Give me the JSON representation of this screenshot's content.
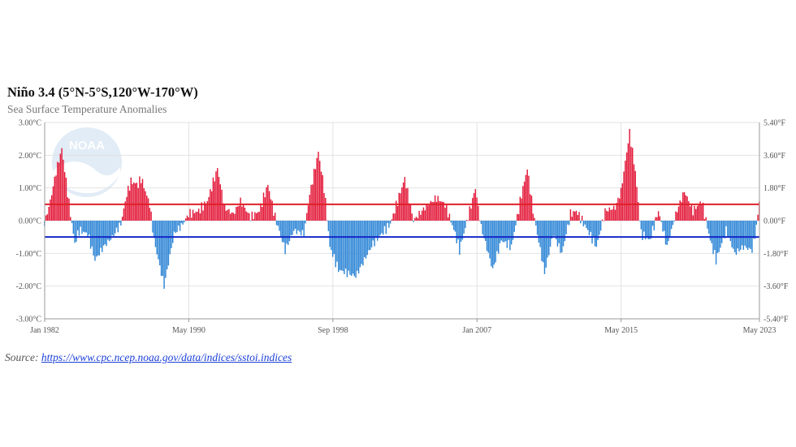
{
  "title": "Niño 3.4 (5°N-5°S,120°W-170°W)",
  "subtitle": "Sea Surface Temperature Anomalies",
  "source": {
    "label": "Source:",
    "link_text": "https://www.cpc.ncep.noaa.gov/data/indices/sstoi.indices"
  },
  "logo_text": "NOAA",
  "colors": {
    "positive": "#e31a3a",
    "negative": "#2f86d6",
    "threshold_upper": "#e0202a",
    "threshold_lower": "#1428c8",
    "grid": "#e2e2e2",
    "axis": "#999999"
  },
  "chart_data": {
    "type": "bar",
    "title": "Niño 3.4 (5°N-5°S,120°W-170°W)",
    "subtitle": "Sea Surface Temperature Anomalies",
    "xlabel": "",
    "ylabel": "",
    "ylim": [
      -3.0,
      3.0
    ],
    "y_ticks": [
      "3.00°C",
      "2.00°C",
      "1.00°C",
      "0.00°C",
      "-1.00°C",
      "-2.00°C",
      "-3.00°C"
    ],
    "y2_ticks": [
      "5.40°F",
      "3.60°F",
      "1.80°F",
      "0.00°F",
      "-1.80°F",
      "-3.60°F",
      "-5.40°F"
    ],
    "x_ticks": [
      "Jan 1982",
      "May 1990",
      "Sep 1998",
      "Jan 2007",
      "May 2015",
      "May 2023"
    ],
    "x_range": [
      "Jan 1982",
      "May 2023"
    ],
    "thresholds": [
      0.5,
      -0.5
    ],
    "grid": true,
    "legend": "none",
    "anomaly_keyframes": [
      {
        "x": "Jan 1982",
        "y": -0.1
      },
      {
        "x": "May 1982",
        "y": 0.6
      },
      {
        "x": "Sep 1982",
        "y": 1.5
      },
      {
        "x": "Jan 1983",
        "y": 2.2
      },
      {
        "x": "Apr 1983",
        "y": 1.2
      },
      {
        "x": "Jul 1983",
        "y": 0.2
      },
      {
        "x": "Oct 1983",
        "y": -0.7
      },
      {
        "x": "Jan 1984",
        "y": -0.3
      },
      {
        "x": "Jul 1984",
        "y": -0.4
      },
      {
        "x": "Dec 1984",
        "y": -1.2
      },
      {
        "x": "Jun 1985",
        "y": -0.8
      },
      {
        "x": "Dec 1985",
        "y": -0.5
      },
      {
        "x": "Jun 1986",
        "y": -0.1
      },
      {
        "x": "Oct 1986",
        "y": 0.8
      },
      {
        "x": "Jan 1987",
        "y": 1.2
      },
      {
        "x": "Jun 1987",
        "y": 1.1
      },
      {
        "x": "Aug 1987",
        "y": 1.3
      },
      {
        "x": "Feb 1988",
        "y": 0.5
      },
      {
        "x": "May 1988",
        "y": -0.6
      },
      {
        "x": "Sep 1988",
        "y": -1.4
      },
      {
        "x": "Dec 1988",
        "y": -2.0
      },
      {
        "x": "Mar 1989",
        "y": -1.3
      },
      {
        "x": "Jul 1989",
        "y": -0.4
      },
      {
        "x": "Jan 1990",
        "y": -0.1
      },
      {
        "x": "May 1990",
        "y": 0.2
      },
      {
        "x": "Dec 1990",
        "y": 0.3
      },
      {
        "x": "Jun 1991",
        "y": 0.6
      },
      {
        "x": "Jan 1992",
        "y": 1.6
      },
      {
        "x": "Jun 1992",
        "y": 0.4
      },
      {
        "x": "Dec 1992",
        "y": 0.2
      },
      {
        "x": "May 1993",
        "y": 0.6
      },
      {
        "x": "Dec 1993",
        "y": 0.1
      },
      {
        "x": "Jun 1994",
        "y": 0.3
      },
      {
        "x": "Dec 1994",
        "y": 1.1
      },
      {
        "x": "May 1995",
        "y": 0.1
      },
      {
        "x": "Dec 1995",
        "y": -0.9
      },
      {
        "x": "Jun 1996",
        "y": -0.3
      },
      {
        "x": "Jan 1997",
        "y": -0.4
      },
      {
        "x": "May 1997",
        "y": 0.8
      },
      {
        "x": "Nov 1997",
        "y": 2.1
      },
      {
        "x": "Mar 1998",
        "y": 1.0
      },
      {
        "x": "Jul 1998",
        "y": -0.8
      },
      {
        "x": "Jan 1999",
        "y": -1.5
      },
      {
        "x": "Jan 2000",
        "y": -1.7
      },
      {
        "x": "Jan 2001",
        "y": -0.7
      },
      {
        "x": "Jan 2002",
        "y": -0.1
      },
      {
        "x": "Nov 2002",
        "y": 1.3
      },
      {
        "x": "May 2003",
        "y": 0.0
      },
      {
        "x": "Jan 2004",
        "y": 0.4
      },
      {
        "x": "Sep 2004",
        "y": 0.7
      },
      {
        "x": "Mar 2005",
        "y": 0.5
      },
      {
        "x": "Oct 2005",
        "y": -0.4
      },
      {
        "x": "Jan 2006",
        "y": -0.9
      },
      {
        "x": "Aug 2006",
        "y": 0.3
      },
      {
        "x": "Dec 2006",
        "y": 1.0
      },
      {
        "x": "Apr 2007",
        "y": -0.2
      },
      {
        "x": "Dec 2007",
        "y": -1.5
      },
      {
        "x": "Jun 2008",
        "y": -0.6
      },
      {
        "x": "Jan 2009",
        "y": -0.8
      },
      {
        "x": "Aug 2009",
        "y": 0.8
      },
      {
        "x": "Dec 2009",
        "y": 1.6
      },
      {
        "x": "Apr 2010",
        "y": 0.3
      },
      {
        "x": "Dec 2010",
        "y": -1.6
      },
      {
        "x": "Jun 2011",
        "y": -0.4
      },
      {
        "x": "Dec 2011",
        "y": -1.0
      },
      {
        "x": "Jun 2012",
        "y": 0.2
      },
      {
        "x": "Oct 2012",
        "y": 0.3
      },
      {
        "x": "Jun 2013",
        "y": -0.3
      },
      {
        "x": "Dec 2013",
        "y": -0.8
      },
      {
        "x": "Jun 2014",
        "y": 0.3
      },
      {
        "x": "Jan 2015",
        "y": 0.4
      },
      {
        "x": "May 2015",
        "y": 0.9
      },
      {
        "x": "Nov 2015",
        "y": 2.7
      },
      {
        "x": "Mar 2016",
        "y": 1.5
      },
      {
        "x": "Jul 2016",
        "y": -0.4
      },
      {
        "x": "Jan 2017",
        "y": -0.6
      },
      {
        "x": "Jul 2017",
        "y": 0.3
      },
      {
        "x": "Jan 2018",
        "y": -0.8
      },
      {
        "x": "Jul 2018",
        "y": 0.2
      },
      {
        "x": "Jan 2019",
        "y": 0.9
      },
      {
        "x": "Jul 2019",
        "y": 0.3
      },
      {
        "x": "Jan 2020",
        "y": 0.6
      },
      {
        "x": "Jul 2020",
        "y": -0.6
      },
      {
        "x": "Nov 2020",
        "y": -1.2
      },
      {
        "x": "Jun 2021",
        "y": -0.3
      },
      {
        "x": "Dec 2021",
        "y": -1.0
      },
      {
        "x": "Jun 2022",
        "y": -0.8
      },
      {
        "x": "Dec 2022",
        "y": -0.9
      },
      {
        "x": "Mar 2023",
        "y": -0.2
      },
      {
        "x": "May 2023",
        "y": 0.6
      }
    ]
  }
}
